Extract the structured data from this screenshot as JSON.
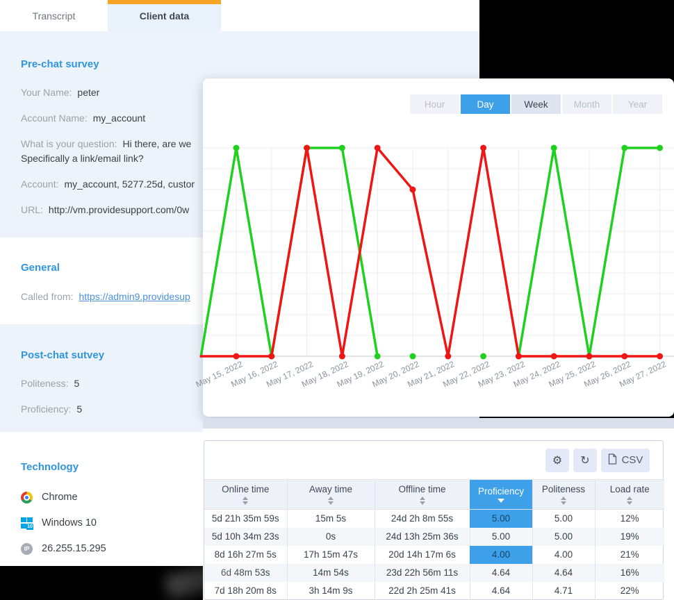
{
  "page": {
    "background": "#000000",
    "accent_blue": "#3da0e8",
    "accent_orange": "#f7a424"
  },
  "left_panel": {
    "tabs": [
      {
        "label": "Transcript",
        "active": false
      },
      {
        "label": "Client data",
        "active": true
      }
    ],
    "sections": {
      "pre_chat": {
        "title": "Pre-chat survey",
        "collapse_icon": "chevron-up-icon",
        "fields": [
          {
            "label": "Your Name:",
            "value": "peter"
          },
          {
            "label": "Account Name:",
            "value": "my_account"
          },
          {
            "label": "What is your question:",
            "value": "Hi there, are we",
            "value2": "Specifically a link/email link?"
          },
          {
            "label": "Account:",
            "value": "my_account, 5277.25d, custor"
          },
          {
            "label": "URL:",
            "value": "http://vm.providesupport.com/0w"
          }
        ]
      },
      "general": {
        "title": "General",
        "fields": [
          {
            "label": "Called from:",
            "value": "https://admin9.providesup",
            "link": true
          }
        ]
      },
      "post_chat": {
        "title": "Post-chat sutvey",
        "fields": [
          {
            "label": "Politeness:",
            "value": "5"
          },
          {
            "label": "Proficiency:",
            "value": "5"
          }
        ]
      },
      "technology": {
        "title": "Technology",
        "items": [
          {
            "icon": "chrome-icon",
            "label": "Chrome"
          },
          {
            "icon": "windows-10-icon",
            "badge": "10",
            "label": "Windows 10"
          },
          {
            "icon": "ip-icon",
            "badge": "IP",
            "label": "26.255.15.295"
          }
        ]
      }
    }
  },
  "chart_panel": {
    "range_tabs": [
      "Hour",
      "Day",
      "Week",
      "Month",
      "Year"
    ],
    "active_range": "Day",
    "secondary_range": "Week",
    "chart_data": {
      "type": "line",
      "x_labels": [
        "May 15, 2022",
        "May 16, 2022",
        "May 17, 2022",
        "May 18, 2022",
        "May 19, 2022",
        "May 20, 2022",
        "May 21, 2022",
        "May 22, 2022",
        "May 23, 2022",
        "May 24, 2022",
        "May 25, 2022",
        "May 26, 2022",
        "May 27, 2022"
      ],
      "ylim": [
        0,
        1
      ],
      "grid": true,
      "legend": "none",
      "series": [
        {
          "name": "green-status",
          "color": "#1fd11f",
          "values": [
            1,
            0,
            1,
            1,
            0,
            0,
            null,
            0,
            0,
            1,
            0,
            1,
            1
          ],
          "line_segments": [
            [
              0,
              4
            ],
            [
              8,
              12
            ]
          ],
          "isolated_point_indexes": [
            5,
            7
          ],
          "enters_from_left_at": 0
        },
        {
          "name": "red-status",
          "color": "#ef1515",
          "values": [
            0,
            0,
            1,
            0,
            1,
            0.8,
            0,
            1,
            0,
            0,
            0,
            0,
            0
          ],
          "line_segments": [
            [
              0,
              12
            ]
          ],
          "isolated_point_indexes": [],
          "enters_from_left_at": 0
        }
      ]
    }
  },
  "table_panel": {
    "toolbar": {
      "gear_glyph": "⚙",
      "refresh_glyph": "↻",
      "csv_label": "CSV"
    },
    "columns": [
      {
        "label": "Online time",
        "sort": "inactive"
      },
      {
        "label": "Away time",
        "sort": "inactive"
      },
      {
        "label": "Offline  time",
        "sort": "inactive"
      },
      {
        "label": "Proficiency",
        "sort": "desc"
      },
      {
        "label": "Politeness",
        "sort": "inactive"
      },
      {
        "label": "Load rate",
        "sort": "inactive"
      }
    ],
    "rows": [
      {
        "cells": [
          "5d 21h 35m 59s",
          "15m 5s",
          "24d 2h 8m 55s",
          "5.00",
          "5.00",
          "12%"
        ],
        "highlighted_cell": 3
      },
      {
        "cells": [
          "5d 10h 34m 23s",
          "0s",
          "24d 13h 25m 36s",
          "5.00",
          "5.00",
          "19%"
        ],
        "highlighted_cell": null
      },
      {
        "cells": [
          "8d 16h 27m 5s",
          "17h 15m 47s",
          "20d 14h 17m 6s",
          "4.00",
          "4.00",
          "21%"
        ],
        "highlighted_cell": 3
      },
      {
        "cells": [
          "6d 48m 53s",
          "14m 54s",
          "23d 22h 56m 11s",
          "4.64",
          "4.64",
          "16%"
        ],
        "highlighted_cell": null
      },
      {
        "cells": [
          "7d 18h 20m 8s",
          "3h 14m 9s",
          "22d 2h 25m 41s",
          "4.64",
          "4.71",
          "22%"
        ],
        "highlighted_cell": null
      }
    ]
  }
}
